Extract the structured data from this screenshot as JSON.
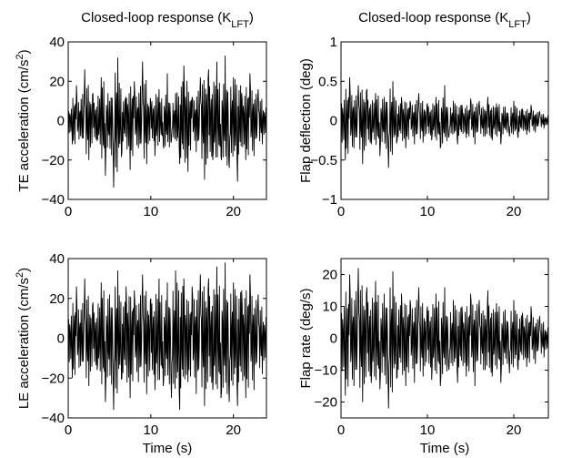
{
  "chart_data": [
    {
      "type": "line",
      "title_main": "Closed-loop response (K",
      "title_sub": "LFT",
      "title_end": ")",
      "ylabel_main": "TE acceleration (cm/s",
      "ylabel_sup": "2",
      "ylabel_end": ")",
      "xlabel": "",
      "xlim": [
        0,
        24
      ],
      "ylim": [
        -40,
        40
      ],
      "xticks": [
        0,
        10,
        20
      ],
      "yticks": [
        -40,
        -20,
        0,
        20,
        40
      ],
      "xtick_labels": [
        "0",
        "10",
        "20"
      ],
      "ytick_labels": [
        "−40",
        "−20",
        "0",
        "20",
        "40"
      ],
      "series": [
        {
          "color": "#000000",
          "x": [
            0,
            0.5,
            1,
            1.5,
            2,
            2.5,
            3,
            3.5,
            4,
            4.5,
            5,
            5.5,
            6,
            6.5,
            7,
            7.5,
            8,
            8.5,
            9,
            9.5,
            10,
            10.5,
            11,
            11.5,
            12,
            12.5,
            13,
            13.5,
            14,
            14.5,
            15,
            15.5,
            16,
            16.5,
            17,
            17.5,
            18,
            18.5,
            19,
            19.5,
            20,
            20.5,
            21,
            21.5,
            22,
            22.5,
            23,
            23.5,
            24
          ],
          "y": [
            4,
            -12,
            18,
            -8,
            26,
            -20,
            14,
            -10,
            22,
            -28,
            10,
            -34,
            32,
            -16,
            12,
            -25,
            20,
            -14,
            30,
            -22,
            8,
            -18,
            16,
            -12,
            24,
            -10,
            14,
            -22,
            28,
            -26,
            12,
            -16,
            22,
            -30,
            26,
            -20,
            30,
            -18,
            33,
            -24,
            22,
            -31,
            14,
            -20,
            24,
            -18,
            16,
            -12,
            6
          ]
        }
      ]
    },
    {
      "type": "line",
      "title_main": "Closed-loop response (K",
      "title_sub": "LFT",
      "title_end": ")",
      "ylabel_main": "Flap deflection (deg)",
      "ylabel_sup": "",
      "ylabel_end": "",
      "xlabel": "",
      "xlim": [
        0,
        24
      ],
      "ylim": [
        -1,
        1
      ],
      "xticks": [
        0,
        10,
        20
      ],
      "yticks": [
        -1,
        -0.5,
        0,
        0.5,
        1
      ],
      "xtick_labels": [
        "0",
        "10",
        "20"
      ],
      "ytick_labels": [
        "−1",
        "−0.5",
        "0",
        "0.5",
        "1"
      ],
      "series": [
        {
          "color": "#000000",
          "x": [
            0,
            0.5,
            1,
            1.5,
            2,
            2.5,
            3,
            3.5,
            4,
            4.5,
            5,
            5.5,
            6,
            6.5,
            7,
            7.5,
            8,
            8.5,
            9,
            9.5,
            10,
            10.5,
            11,
            11.5,
            12,
            12.5,
            13,
            13.5,
            14,
            14.5,
            15,
            15.5,
            16,
            16.5,
            17,
            17.5,
            18,
            18.5,
            19,
            19.5,
            20,
            20.5,
            21,
            21.5,
            22,
            22.5,
            23,
            23.5,
            24
          ],
          "y": [
            0.2,
            -0.5,
            0.55,
            -0.35,
            0.45,
            -0.55,
            0.4,
            -0.3,
            0.35,
            -0.45,
            0.3,
            -0.6,
            0.5,
            -0.25,
            0.3,
            -0.35,
            0.25,
            -0.3,
            0.35,
            -0.28,
            0.22,
            -0.25,
            0.3,
            -0.35,
            0.45,
            -0.2,
            0.25,
            -0.3,
            0.2,
            -0.22,
            0.28,
            -0.3,
            0.25,
            -0.2,
            0.3,
            -0.25,
            0.22,
            -0.3,
            0.18,
            -0.2,
            0.25,
            -0.22,
            0.15,
            -0.18,
            0.2,
            -0.15,
            0.12,
            -0.1,
            0.05
          ]
        }
      ]
    },
    {
      "type": "line",
      "title_main": "",
      "title_sub": "",
      "title_end": "",
      "ylabel_main": "LE acceleration (cm/s",
      "ylabel_sup": "2",
      "ylabel_end": ")",
      "xlabel": "Time (s)",
      "xlim": [
        0,
        24
      ],
      "ylim": [
        -40,
        40
      ],
      "xticks": [
        0,
        10,
        20
      ],
      "yticks": [
        -40,
        -20,
        0,
        20,
        40
      ],
      "xtick_labels": [
        "0",
        "10",
        "20"
      ],
      "ytick_labels": [
        "−40",
        "−20",
        "0",
        "20",
        "40"
      ],
      "series": [
        {
          "color": "#000000",
          "x": [
            0,
            0.5,
            1,
            1.5,
            2,
            2.5,
            3,
            3.5,
            4,
            4.5,
            5,
            5.5,
            6,
            6.5,
            7,
            7.5,
            8,
            8.5,
            9,
            9.5,
            10,
            10.5,
            11,
            11.5,
            12,
            12.5,
            13,
            13.5,
            14,
            14.5,
            15,
            15.5,
            16,
            16.5,
            17,
            17.5,
            18,
            18.5,
            19,
            19.5,
            20,
            20.5,
            21,
            21.5,
            22,
            22.5,
            23,
            23.5,
            24
          ],
          "y": [
            10,
            -20,
            26,
            -14,
            30,
            -24,
            18,
            -16,
            28,
            -32,
            22,
            -36,
            34,
            -20,
            26,
            -30,
            24,
            -22,
            32,
            -28,
            20,
            -26,
            30,
            -24,
            28,
            -30,
            34,
            -36,
            30,
            -22,
            26,
            -28,
            32,
            -34,
            30,
            -26,
            36,
            -30,
            38,
            -32,
            28,
            -34,
            24,
            -30,
            32,
            -26,
            22,
            -18,
            10
          ]
        }
      ]
    },
    {
      "type": "line",
      "title_main": "",
      "title_sub": "",
      "title_end": "",
      "ylabel_main": "Flap rate (deg/s)",
      "ylabel_sup": "",
      "ylabel_end": "",
      "xlabel": "Time (s)",
      "xlim": [
        0,
        24
      ],
      "ylim": [
        -25,
        25
      ],
      "xticks": [
        0,
        10,
        20
      ],
      "yticks": [
        -20,
        -10,
        0,
        10,
        20
      ],
      "xtick_labels": [
        "0",
        "10",
        "20"
      ],
      "ytick_labels": [
        "−20",
        "−10",
        "0",
        "10",
        "20"
      ],
      "series": [
        {
          "color": "#000000",
          "x": [
            0,
            0.5,
            1,
            1.5,
            2,
            2.5,
            3,
            3.5,
            4,
            4.5,
            5,
            5.5,
            6,
            6.5,
            7,
            7.5,
            8,
            8.5,
            9,
            9.5,
            10,
            10.5,
            11,
            11.5,
            12,
            12.5,
            13,
            13.5,
            14,
            14.5,
            15,
            15.5,
            16,
            16.5,
            17,
            17.5,
            18,
            18.5,
            19,
            19.5,
            20,
            20.5,
            21,
            21.5,
            22,
            22.5,
            23,
            23.5,
            24
          ],
          "y": [
            8,
            -18,
            20,
            -15,
            22,
            -20,
            16,
            -14,
            18,
            -16,
            14,
            -22,
            21,
            -12,
            14,
            -15,
            12,
            -14,
            16,
            -12,
            10,
            -13,
            14,
            -15,
            16,
            -10,
            12,
            -14,
            10,
            -12,
            14,
            -15,
            12,
            -10,
            15,
            -12,
            11,
            -14,
            9,
            -11,
            12,
            -10,
            8,
            -9,
            10,
            -8,
            7,
            -6,
            3
          ]
        }
      ]
    }
  ]
}
